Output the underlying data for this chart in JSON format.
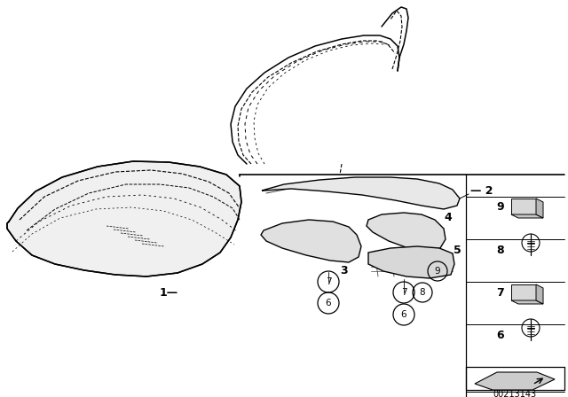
{
  "bg_color": "#ffffff",
  "line_color": "#000000",
  "doc_number": "00213143",
  "fig_width": 6.4,
  "fig_height": 4.48,
  "dpi": 100
}
